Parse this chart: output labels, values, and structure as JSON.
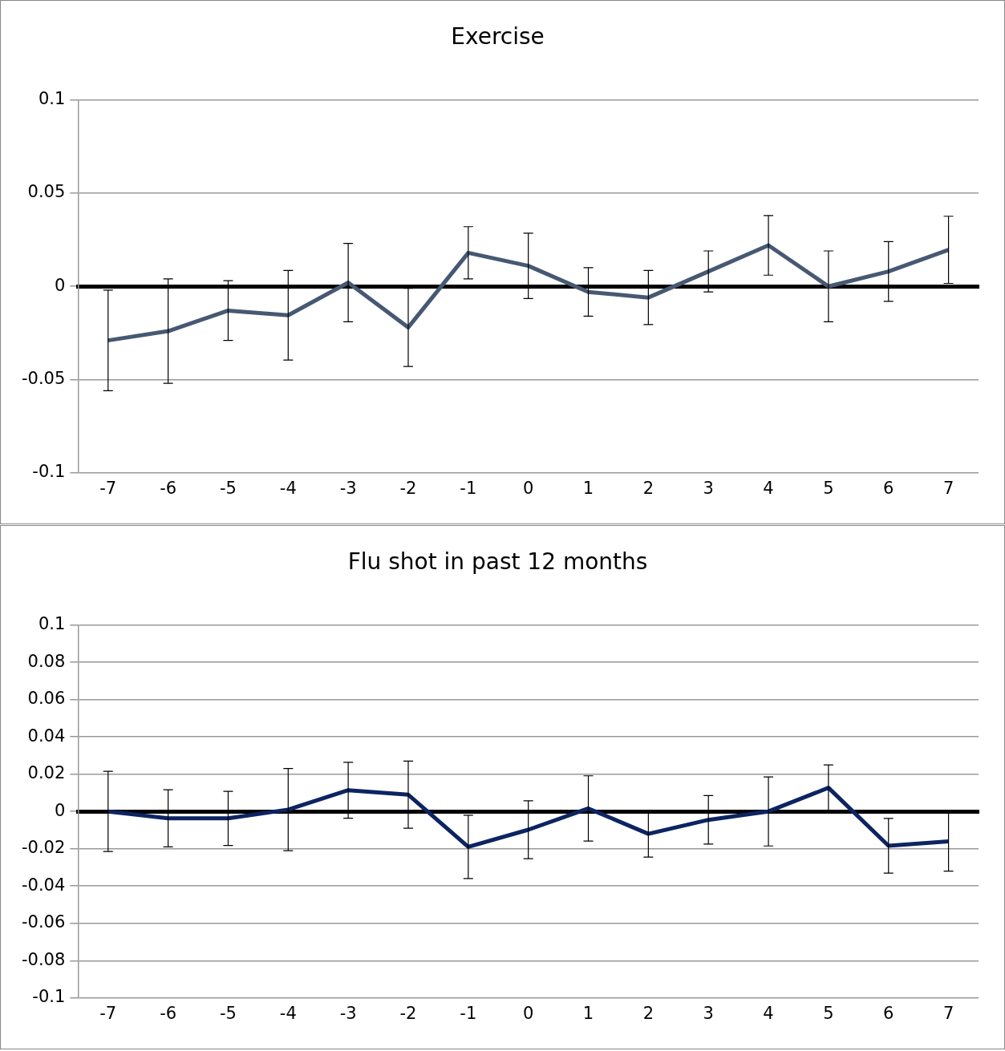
{
  "chart_data": [
    {
      "type": "line",
      "title": "Exercise",
      "categories": [
        "-7",
        "-6",
        "-5",
        "-4",
        "-3",
        "-2",
        "-1",
        "0",
        "1",
        "2",
        "3",
        "4",
        "5",
        "6",
        "7"
      ],
      "series": [
        {
          "color": "#475872",
          "values": [
            -0.029,
            -0.024,
            -0.013,
            -0.0155,
            0.002,
            -0.022,
            0.018,
            0.011,
            -0.003,
            -0.006,
            0.008,
            0.022,
            0.0,
            0.008,
            0.0196
          ],
          "errors": [
            0.027,
            0.028,
            0.016,
            0.024,
            0.021,
            0.021,
            0.014,
            0.0175,
            0.013,
            0.0145,
            0.011,
            0.016,
            0.019,
            0.016,
            0.018
          ]
        }
      ],
      "ylim": [
        -0.1,
        0.1
      ],
      "yticks": [
        -0.1,
        -0.05,
        0,
        0.05,
        0.1
      ],
      "grid": "y",
      "marker": "none"
    },
    {
      "type": "line",
      "title": "Flu shot in past 12 months",
      "categories": [
        "-7",
        "-6",
        "-5",
        "-4",
        "-3",
        "-2",
        "-1",
        "0",
        "1",
        "2",
        "3",
        "4",
        "5",
        "6",
        "7"
      ],
      "series": [
        {
          "color": "#0c2461",
          "values": [
            0.0,
            -0.0037,
            -0.0037,
            0.001,
            0.0114,
            0.009,
            -0.019,
            -0.0098,
            0.0016,
            -0.012,
            -0.0045,
            0.0,
            0.0127,
            -0.0184,
            -0.016
          ],
          "errors": [
            0.0215,
            0.0153,
            0.0145,
            0.022,
            0.015,
            0.018,
            0.017,
            0.0155,
            0.0175,
            0.0125,
            0.013,
            0.0185,
            0.0123,
            0.0147,
            0.016
          ]
        }
      ],
      "ylim": [
        -0.1,
        0.1
      ],
      "yticks": [
        -0.1,
        -0.08,
        -0.06,
        -0.04,
        -0.02,
        0,
        0.02,
        0.04,
        0.06,
        0.08,
        0.1
      ],
      "grid": "y",
      "marker": "none"
    }
  ]
}
